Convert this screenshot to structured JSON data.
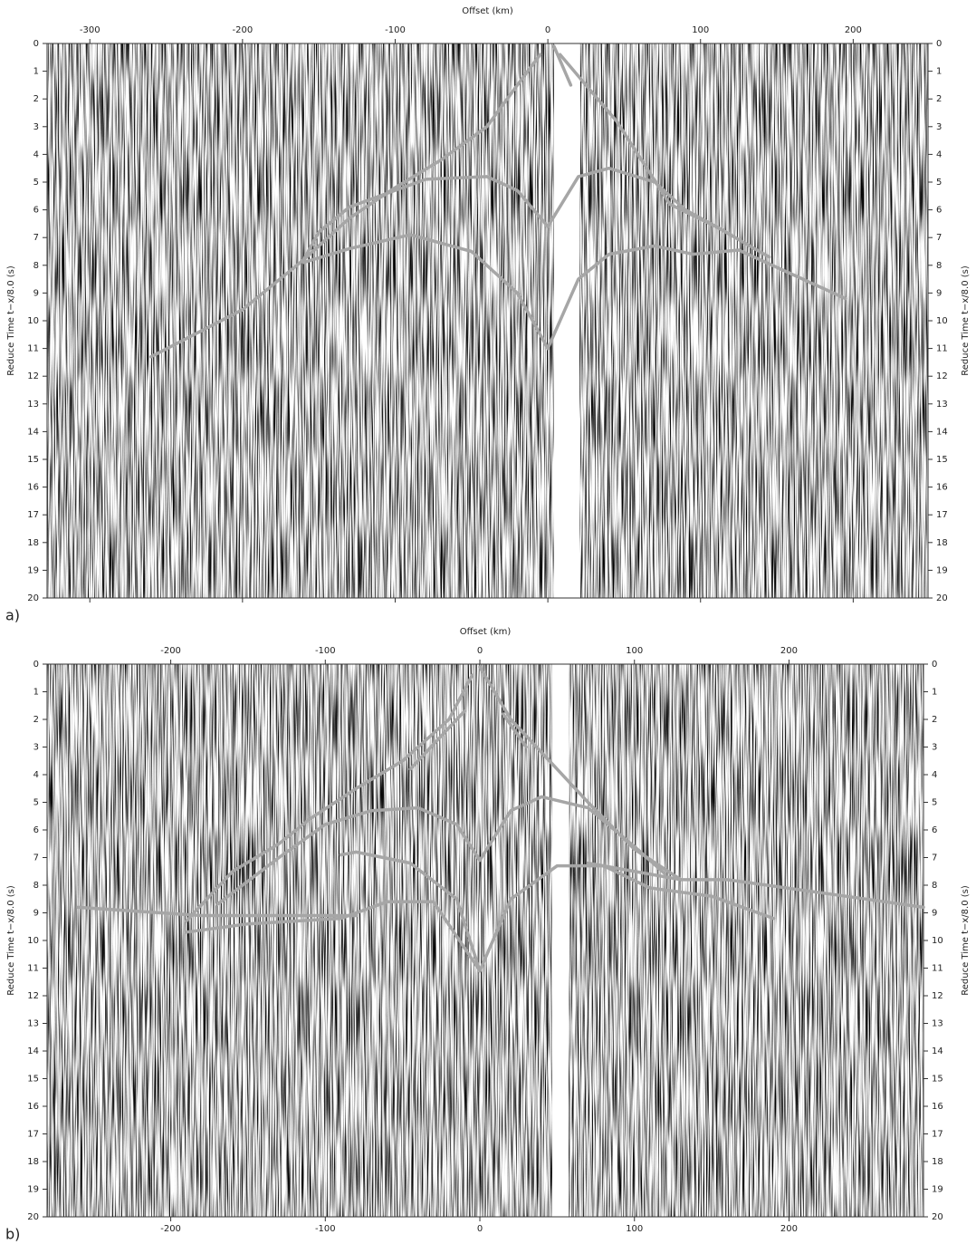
{
  "chart_data": [
    {
      "type": "line",
      "panel_label": "a)",
      "xlabel": "Offset (km)",
      "ylabel": "Reduce Time t−x/8.0 (s)",
      "xlim": [
        -328,
        249
      ],
      "ylim": [
        20,
        0
      ],
      "xticks": [
        -300,
        -200,
        -100,
        0,
        100,
        200
      ],
      "yticks": [
        0,
        1,
        2,
        3,
        4,
        5,
        6,
        7,
        8,
        9,
        10,
        11,
        12,
        13,
        14,
        15,
        16,
        17,
        18,
        19,
        20
      ],
      "xticks_bottom": false,
      "series": [
        {
          "color": "#a6a6a6",
          "x": [
            -5,
            -20,
            -40,
            -70,
            -100,
            -130,
            -160,
            -200,
            -260
          ],
          "values": [
            0.4,
            1.5,
            3,
            4.2,
            5.2,
            6.3,
            7.8,
            9.6,
            11.3
          ]
        },
        {
          "color": "#a6a6a6",
          "x": [
            4,
            15
          ],
          "values": [
            0.1,
            1.5
          ]
        },
        {
          "color": "#a6a6a6",
          "x": [
            8,
            45,
            80,
            110,
            145
          ],
          "values": [
            0.4,
            2.8,
            5.8,
            6.6,
            7.7
          ]
        },
        {
          "color": "#a6a6a6",
          "x": [
            0,
            -20,
            -40,
            -80,
            -130,
            -150,
            -160
          ],
          "values": [
            6.6,
            5.3,
            4.8,
            4.9,
            5.9,
            6.8,
            7.8
          ]
        },
        {
          "color": "#a6a6a6",
          "x": [
            0,
            20,
            40,
            70,
            90,
            120
          ],
          "values": [
            6.6,
            4.8,
            4.5,
            5,
            6,
            6.9
          ]
        },
        {
          "color": "#a6a6a6",
          "x": [
            0,
            -20,
            -50,
            -90,
            -130,
            -160
          ],
          "values": [
            11,
            9,
            7.5,
            6.9,
            7.4,
            7.9
          ]
        },
        {
          "color": "#a6a6a6",
          "x": [
            0,
            20,
            40,
            70,
            95,
            125,
            195
          ],
          "values": [
            11,
            8.5,
            7.6,
            7.3,
            7.6,
            7.45,
            9.2
          ]
        }
      ]
    },
    {
      "type": "line",
      "panel_label": "b)",
      "xlabel": "Offset (km)",
      "ylabel": "Reduce Time t−x/8.0 (s)",
      "xlim": [
        -280,
        287
      ],
      "ylim": [
        20,
        0
      ],
      "xticks": [
        -200,
        -100,
        0,
        100,
        200
      ],
      "yticks": [
        0,
        1,
        2,
        3,
        4,
        5,
        6,
        7,
        8,
        9,
        10,
        11,
        12,
        13,
        14,
        15,
        16,
        17,
        18,
        19,
        20
      ],
      "xticks_bottom": true,
      "series": [
        {
          "color": "#a6a6a6",
          "x": [
            -5,
            -20,
            -50,
            -80,
            -110,
            -130,
            -160,
            -190
          ],
          "values": [
            0.4,
            2,
            3.5,
            4.5,
            5.6,
            6.5,
            7.5,
            9.3
          ]
        },
        {
          "color": "#a6a6a6",
          "x": [
            -10,
            -45
          ],
          "values": [
            1.7,
            3.8
          ]
        },
        {
          "color": "#a6a6a6",
          "x": [
            0,
            20,
            40,
            70,
            100,
            130
          ],
          "values": [
            0.1,
            2,
            3.2,
            5,
            6.7,
            7.8
          ]
        },
        {
          "color": "#a6a6a6",
          "x": [
            15,
            30
          ],
          "values": [
            1.8,
            3
          ]
        },
        {
          "color": "#a6a6a6",
          "x": [
            0,
            -15,
            -40,
            -70,
            -100,
            -130,
            -170
          ],
          "values": [
            7.1,
            5.8,
            5.2,
            5.3,
            5.8,
            7,
            8.7
          ]
        },
        {
          "color": "#a6a6a6",
          "x": [
            0,
            20,
            40,
            70,
            100,
            120
          ],
          "values": [
            7.1,
            5.3,
            4.8,
            5.2,
            6.6,
            7.6
          ]
        },
        {
          "color": "#a6a6a6",
          "x": [
            0,
            -15,
            -45,
            -80,
            -90
          ],
          "values": [
            11.1,
            8.5,
            7.2,
            6.8,
            6.9
          ]
        },
        {
          "color": "#a6a6a6",
          "x": [
            0,
            -30,
            -60,
            -90,
            -150,
            -190
          ],
          "values": [
            11.1,
            8.6,
            8.6,
            9.2,
            9.4,
            9.7
          ]
        },
        {
          "color": "#a6a6a6",
          "x": [
            0,
            20,
            50,
            80,
            110,
            150,
            190
          ],
          "values": [
            11.1,
            8.5,
            7.3,
            7.3,
            8.1,
            8.4,
            9.2
          ]
        },
        {
          "color": "#a6a6a6",
          "x": [
            70,
            130,
            160,
            250,
            287
          ],
          "values": [
            7.2,
            7.8,
            7.8,
            8.5,
            8.8
          ]
        },
        {
          "color": "#a6a6a6",
          "x": [
            -260,
            -180,
            -130,
            -80
          ],
          "values": [
            8.8,
            9.1,
            9.1,
            9.1
          ]
        }
      ]
    }
  ]
}
